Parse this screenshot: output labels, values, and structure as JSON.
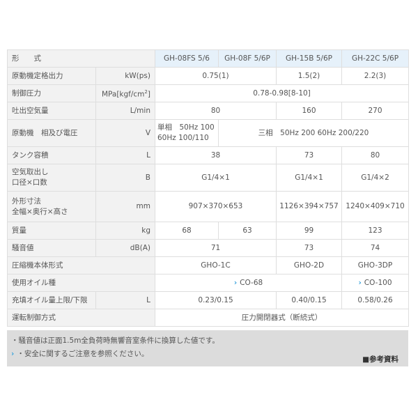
{
  "header": {
    "label": "形　　式",
    "models": [
      "GH-08FS 5/6",
      "GH-08F 5/6P",
      "GH-15B 5/6P",
      "GH-22C 5/6P"
    ]
  },
  "rows": {
    "power": {
      "label": "原動機定格出力",
      "unit": "kW(ps)",
      "v1": "0.75(1)",
      "v2": "1.5(2)",
      "v3": "2.2(3)"
    },
    "pressure": {
      "label": "制御圧力",
      "unit_pre": "MPa[kgf/cm",
      "unit_sup": "2",
      "unit_post": "]",
      "v1": "0.78-0.98[8-10]"
    },
    "air": {
      "label": "吐出空気量",
      "unit": "L/min",
      "v1": "80",
      "v2": "160",
      "v3": "270"
    },
    "voltage": {
      "label": "原動機　相及び電圧",
      "unit": "V",
      "v1a": "単相　50Hz 100",
      "v1b": "60Hz 100/110",
      "v2": "三相　50Hz 200 60Hz 200/220"
    },
    "tank": {
      "label": "タンク容積",
      "unit": "L",
      "v1": "38",
      "v2": "73",
      "v3": "80"
    },
    "outlet": {
      "label_a": "空気取出し",
      "label_b": "口径×口数",
      "unit": "B",
      "v1": "G1/4×1",
      "v2": "G1/4×1",
      "v3": "G1/4×2"
    },
    "dims": {
      "label_a": "外形寸法",
      "label_b": "全幅×奥行×高さ",
      "unit": "mm",
      "v1": "907×370×653",
      "v2": "1126×394×757",
      "v3": "1240×409×710"
    },
    "mass": {
      "label": "質量",
      "unit": "kg",
      "v1": "68",
      "v2": "63",
      "v3": "99",
      "v4": "123"
    },
    "noise": {
      "label": "騒音値",
      "unit": "dB(A)",
      "v1": "71",
      "v2": "73",
      "v3": "74"
    },
    "body": {
      "label": "圧縮機本体形式",
      "v1": "GHO-1C",
      "v2": "GHO-2D",
      "v3": "GHO-3DP"
    },
    "oil": {
      "label": "使用オイル種",
      "v1": "CO-68",
      "v2": "CO-100"
    },
    "oilqty": {
      "label": "充填オイル量上限/下限",
      "unit": "L",
      "v1": "0.23/0.15",
      "v2": "0.40/0.15",
      "v3": "0.58/0.26"
    },
    "control": {
      "label": "運転制御方式",
      "v1": "圧力開閉器式（断続式）"
    }
  },
  "footer": {
    "note1": "・騒音値は正面1.5m全負荷時無響音室条件に換算した値です。",
    "note2": "・安全に関するご注意を参照ください。",
    "ref": "■参考資料"
  },
  "colors": {
    "label_bg": "#f2f2f2",
    "header_bg": "#e6f1fa",
    "footer_bg": "#dcdcdc",
    "link": "#3aa3dc"
  }
}
